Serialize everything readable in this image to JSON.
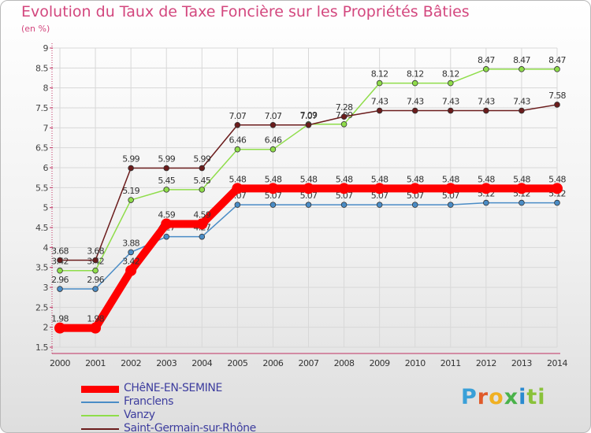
{
  "chart_data": {
    "type": "line",
    "title": "Evolution du Taux de Taxe Foncière sur les Propriétés Bâties",
    "subtitle": "(en %)",
    "categories": [
      "2000",
      "2001",
      "2002",
      "2003",
      "2004",
      "2005",
      "2006",
      "2007",
      "2008",
      "2009",
      "2010",
      "2011",
      "2012",
      "2013",
      "2014"
    ],
    "ylim": [
      1.5,
      9
    ],
    "yticks": [
      "1.5",
      "2",
      "2.5",
      "3",
      "3.5",
      "4",
      "4.5",
      "5",
      "5.5",
      "6",
      "6.5",
      "7",
      "7.5",
      "8",
      "8.5",
      "9"
    ],
    "series": [
      {
        "name": "CHêNE-EN-SEMINE",
        "color": "#ff0000",
        "emphasis": true,
        "values": [
          1.98,
          1.98,
          3.42,
          4.59,
          4.59,
          5.48,
          5.48,
          5.48,
          5.48,
          5.48,
          5.48,
          5.48,
          5.48,
          5.48,
          5.48
        ],
        "labels": [
          "1.98",
          "1.98",
          "3.42",
          "4.59",
          "4.59",
          "5.48",
          "5.48",
          "5.48",
          "5.48",
          "5.48",
          "5.48",
          "5.48",
          "5.48",
          "5.48",
          "5.48"
        ]
      },
      {
        "name": "Franclens",
        "color": "#4a8cc6",
        "emphasis": false,
        "values": [
          2.96,
          2.96,
          3.88,
          4.27,
          4.27,
          5.07,
          5.07,
          5.07,
          5.07,
          5.07,
          5.07,
          5.07,
          5.12,
          5.12,
          5.12
        ],
        "labels": [
          "2.96",
          "2.96",
          "3.88",
          "4.27",
          "4.27",
          "5.07",
          "5.07",
          "5.07",
          "5.07",
          "5.07",
          "5.07",
          "5.07",
          "5.12",
          "5.12",
          "5.12"
        ]
      },
      {
        "name": "Vanzy",
        "color": "#8fdd4a",
        "emphasis": false,
        "values": [
          3.42,
          3.42,
          5.19,
          5.45,
          5.45,
          6.46,
          6.46,
          7.09,
          7.09,
          8.12,
          8.12,
          8.12,
          8.47,
          8.47,
          8.47
        ],
        "labels": [
          "3.42",
          "3.42",
          "5.19",
          "5.45",
          "5.45",
          "6.46",
          "6.46",
          "7.09",
          "7.09",
          "8.12",
          "8.12",
          "8.12",
          "8.47",
          "8.47",
          "8.47"
        ]
      },
      {
        "name": "Saint-Germain-sur-Rhône",
        "color": "#6b1c1c",
        "emphasis": false,
        "values": [
          3.68,
          3.68,
          5.99,
          5.99,
          5.99,
          7.07,
          7.07,
          7.07,
          7.28,
          7.43,
          7.43,
          7.43,
          7.43,
          7.43,
          7.58
        ],
        "labels": [
          "3.68",
          "3.68",
          "5.99",
          "5.99",
          "5.99",
          "7.07",
          "7.07",
          "7.07",
          "7.28",
          "7.43",
          "7.43",
          "7.43",
          "7.43",
          "7.43",
          "7.58"
        ]
      }
    ],
    "legend_position": "bottom-left"
  },
  "brand": {
    "logo_letters": [
      "P",
      "r",
      "o",
      "x",
      "i",
      "ti"
    ]
  }
}
